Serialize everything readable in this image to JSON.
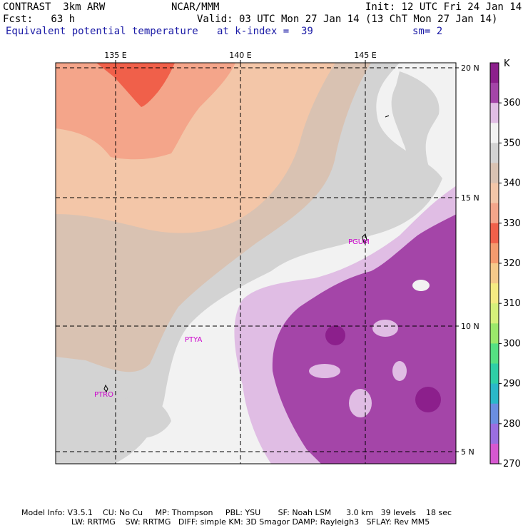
{
  "header": {
    "model": "CONTRAST  3km ARW",
    "org": "NCAR/MMM",
    "init": "Init: 12 UTC Fri 24 Jan 14",
    "fcst": "Fcst:   63 h",
    "valid": "Valid: 03 UTC Mon 27 Jan 14 (13 ChT Mon 27 Jan 14)",
    "field": "Equivalent potential temperature",
    "level": "at k-index =  39",
    "smooth": "sm= 2"
  },
  "map": {
    "lon_labels": [
      "135 E",
      "140 E",
      "145 E"
    ],
    "lat_labels": [
      "20 N",
      "15 N",
      "10 N",
      "5 N"
    ],
    "stations": [
      "PGUM",
      "PTYA",
      "PTRO"
    ]
  },
  "colorbar": {
    "unit": "K",
    "labels": [
      "360",
      "350",
      "340",
      "330",
      "320",
      "310",
      "300",
      "290",
      "280",
      "270"
    ],
    "colors": [
      "#8c1f8c",
      "#a445a8",
      "#e0bde4",
      "#f2f2f2",
      "#d3d3d3",
      "#d9c2b2",
      "#f3c6a8",
      "#f4a58a",
      "#f0604a",
      "#f49a6e",
      "#f5c98a",
      "#f5ea82",
      "#d6f07a",
      "#9be86a",
      "#55e082",
      "#2ecfa6",
      "#2ab8c8",
      "#6a8ee0",
      "#9a6ee0",
      "#d658d0"
    ]
  },
  "footer": {
    "line1": "Model Info: V3.5.1    CU: No Cu     MP: Thompson     PBL: YSU       SF: Noah LSM      3.0 km   39 levels    18 sec",
    "line2": "LW: RRTMG    SW: RRTMG   DIFF: simple KM: 3D Smagor DAMP: Rayleigh3   SFLAY: Rev MM5"
  }
}
